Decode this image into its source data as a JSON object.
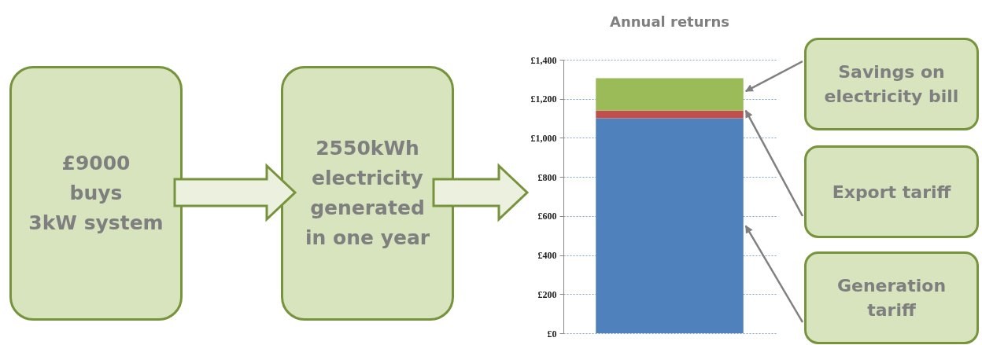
{
  "chart_data": {
    "type": "bar",
    "title": "Annual returns",
    "stacked": true,
    "categories": [
      null
    ],
    "series": [
      {
        "name": "Generation tariff",
        "color": "#4f81bd",
        "values": [
          1100
        ]
      },
      {
        "name": "Export tariff",
        "color": "#c0504d",
        "values": [
          40
        ]
      },
      {
        "name": "Savings on electricity bill",
        "color": "#9bbb59",
        "values": [
          165
        ]
      }
    ],
    "ylim": [
      0,
      1400
    ],
    "yticks": [
      {
        "value": 0,
        "label": "£0"
      },
      {
        "value": 200,
        "label": "£200"
      },
      {
        "value": 400,
        "label": "£400"
      },
      {
        "value": 600,
        "label": "£600"
      },
      {
        "value": 800,
        "label": "£800"
      },
      {
        "value": 1000,
        "label": "£1,000"
      },
      {
        "value": 1200,
        "label": "£1,200"
      },
      {
        "value": 1400,
        "label": "£1,400"
      }
    ],
    "grid": "y",
    "annotations": [
      "£9000\nbuys\n3kW system",
      "2550kWh\nelectricity\ngenerated\nin one year"
    ]
  }
}
